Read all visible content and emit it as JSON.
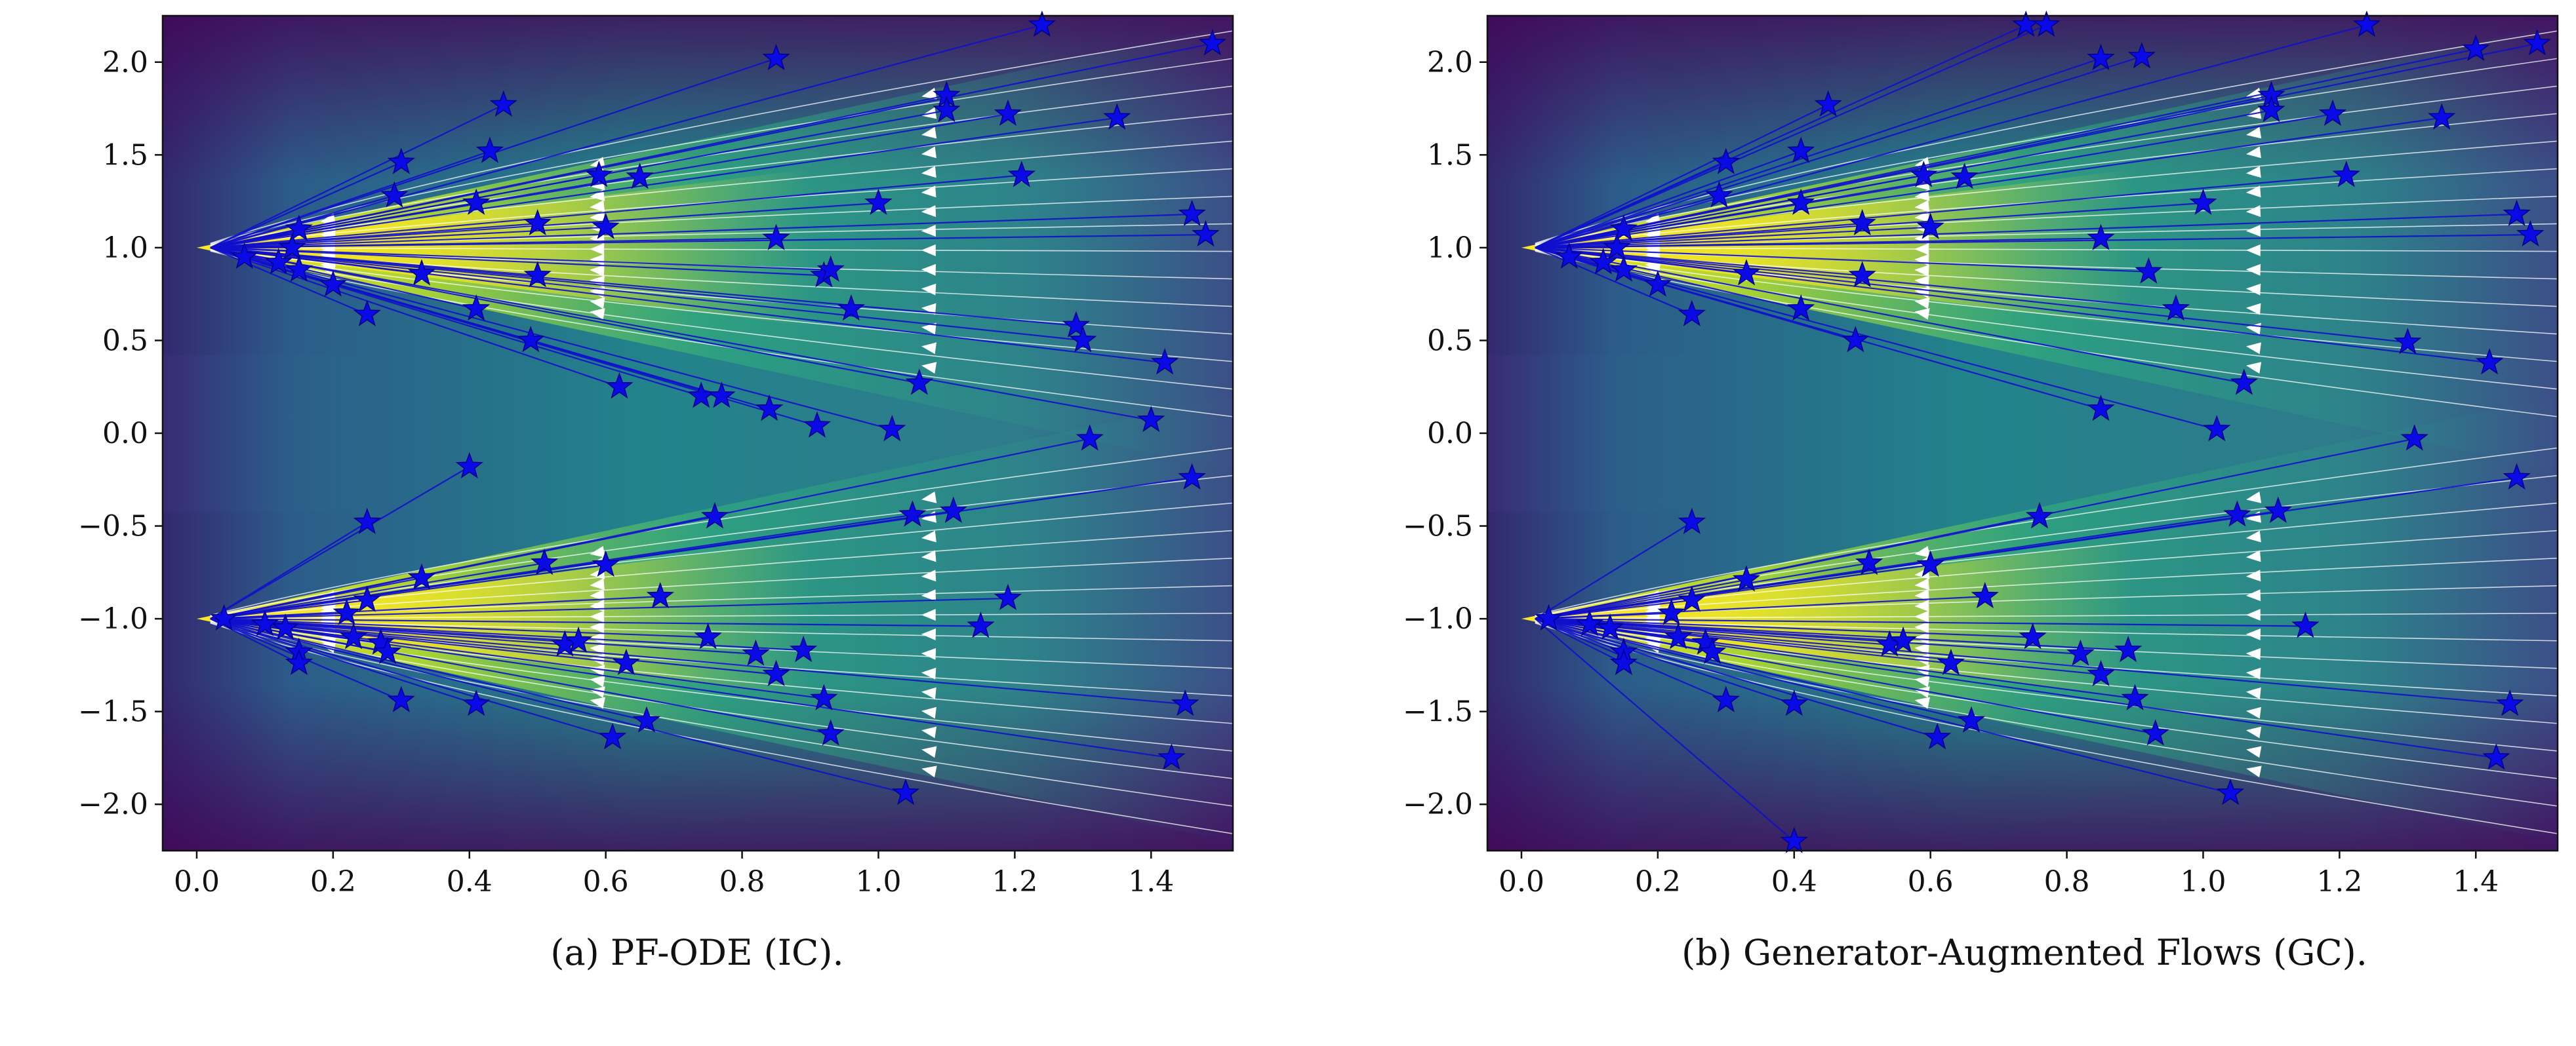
{
  "figure": {
    "captions": [
      "(a) PF-ODE (IC).",
      "(b) Generator-Augmented Flows (GC)."
    ]
  },
  "colors": {
    "trajectory": "#1010cc",
    "star": "#0a0ae6",
    "star_edge": "#00008a",
    "stream": "#ffffff",
    "axes": "#111111"
  },
  "chart_data": [
    {
      "type": "scatter",
      "title": "",
      "caption": "(a) PF-ODE (IC).",
      "xlabel": "",
      "ylabel": "",
      "xlim": [
        -0.05,
        1.52
      ],
      "ylim": [
        -2.25,
        2.25
      ],
      "xticks": [
        0.0,
        0.2,
        0.4,
        0.6,
        0.8,
        1.0,
        1.2,
        1.4
      ],
      "xtick_labels": [
        "0.0",
        "0.2",
        "0.4",
        "0.6",
        "0.8",
        "1.0",
        "1.2",
        "1.4"
      ],
      "yticks": [
        2.0,
        1.5,
        1.0,
        0.5,
        0.0,
        -0.5,
        -1.0,
        -1.5,
        -2.0
      ],
      "ytick_labels": [
        "2.0",
        "1.5",
        "1.0",
        "0.5",
        "0.0",
        "−0.5",
        "−1.0",
        "−1.5",
        "−2.0"
      ],
      "background": "density heatmap (viridis) with two modes at y=1 and y=-1",
      "modes": [
        1.0,
        -1.0
      ],
      "streamlines": "white flow arrows pointing toward the modes at x=0",
      "series": [
        {
          "name": "trajectory endpoints",
          "marker": "star",
          "points": [
            [
              0.85,
              2.02
            ],
            [
              1.24,
              2.2
            ],
            [
              1.49,
              2.1
            ],
            [
              0.45,
              1.77
            ],
            [
              1.1,
              1.82
            ],
            [
              1.1,
              1.74
            ],
            [
              1.19,
              1.72
            ],
            [
              1.35,
              1.7
            ],
            [
              0.3,
              1.46
            ],
            [
              0.43,
              1.52
            ],
            [
              0.59,
              1.39
            ],
            [
              0.65,
              1.38
            ],
            [
              1.21,
              1.39
            ],
            [
              0.29,
              1.28
            ],
            [
              0.41,
              1.24
            ],
            [
              1.0,
              1.24
            ],
            [
              1.46,
              1.18
            ],
            [
              0.5,
              1.13
            ],
            [
              0.6,
              1.11
            ],
            [
              0.85,
              1.05
            ],
            [
              1.48,
              1.07
            ],
            [
              0.15,
              1.1
            ],
            [
              0.14,
              1.0
            ],
            [
              0.15,
              0.88
            ],
            [
              0.33,
              0.86
            ],
            [
              0.5,
              0.85
            ],
            [
              0.92,
              0.85
            ],
            [
              0.93,
              0.88
            ],
            [
              0.07,
              0.95
            ],
            [
              0.12,
              0.92
            ],
            [
              0.2,
              0.8
            ],
            [
              0.25,
              0.64
            ],
            [
              0.41,
              0.67
            ],
            [
              0.49,
              0.5
            ],
            [
              0.96,
              0.67
            ],
            [
              1.29,
              0.58
            ],
            [
              1.3,
              0.5
            ],
            [
              1.42,
              0.38
            ],
            [
              0.62,
              0.25
            ],
            [
              0.74,
              0.2
            ],
            [
              0.77,
              0.2
            ],
            [
              0.84,
              0.13
            ],
            [
              0.91,
              0.04
            ],
            [
              1.02,
              0.02
            ],
            [
              1.06,
              0.27
            ],
            [
              1.31,
              -0.03
            ],
            [
              1.4,
              0.07
            ],
            [
              0.4,
              -0.18
            ],
            [
              0.25,
              -0.48
            ],
            [
              0.33,
              -0.78
            ],
            [
              0.51,
              -0.7
            ],
            [
              0.6,
              -0.71
            ],
            [
              0.76,
              -0.45
            ],
            [
              1.05,
              -0.44
            ],
            [
              1.11,
              -0.42
            ],
            [
              1.46,
              -0.24
            ],
            [
              0.68,
              -0.88
            ],
            [
              1.19,
              -0.89
            ],
            [
              1.15,
              -1.04
            ],
            [
              0.04,
              -1.0
            ],
            [
              0.1,
              -1.03
            ],
            [
              0.13,
              -1.05
            ],
            [
              0.15,
              -1.18
            ],
            [
              0.15,
              -1.24
            ],
            [
              0.22,
              -0.97
            ],
            [
              0.25,
              -0.9
            ],
            [
              0.23,
              -1.1
            ],
            [
              0.27,
              -1.13
            ],
            [
              0.28,
              -1.18
            ],
            [
              0.3,
              -1.44
            ],
            [
              0.41,
              -1.46
            ],
            [
              0.54,
              -1.14
            ],
            [
              0.56,
              -1.12
            ],
            [
              0.63,
              -1.24
            ],
            [
              0.61,
              -1.64
            ],
            [
              0.66,
              -1.55
            ],
            [
              0.75,
              -1.1
            ],
            [
              0.82,
              -1.19
            ],
            [
              0.85,
              -1.3
            ],
            [
              0.89,
              -1.17
            ],
            [
              0.92,
              -1.43
            ],
            [
              0.93,
              -1.62
            ],
            [
              1.04,
              -1.94
            ],
            [
              1.43,
              -1.75
            ],
            [
              1.45,
              -1.46
            ]
          ]
        }
      ]
    },
    {
      "type": "scatter",
      "title": "",
      "caption": "(b) Generator-Augmented Flows (GC).",
      "xlabel": "",
      "ylabel": "",
      "xlim": [
        -0.05,
        1.52
      ],
      "ylim": [
        -2.25,
        2.25
      ],
      "xticks": [
        0.0,
        0.2,
        0.4,
        0.6,
        0.8,
        1.0,
        1.2,
        1.4
      ],
      "xtick_labels": [
        "0.0",
        "0.2",
        "0.4",
        "0.6",
        "0.8",
        "1.0",
        "1.2",
        "1.4"
      ],
      "yticks": [
        2.0,
        1.5,
        1.0,
        0.5,
        0.0,
        -0.5,
        -1.0,
        -1.5,
        -2.0
      ],
      "ytick_labels": [
        "2.0",
        "1.5",
        "1.0",
        "0.5",
        "0.0",
        "−0.5",
        "−1.0",
        "−1.5",
        "−2.0"
      ],
      "background": "density heatmap (viridis) with two modes at y=1 and y=-1",
      "modes": [
        1.0,
        -1.0
      ],
      "streamlines": "white flow arrows pointing toward the modes at x=0",
      "series": [
        {
          "name": "trajectory endpoints",
          "marker": "star",
          "points": [
            [
              0.74,
              2.2
            ],
            [
              0.77,
              2.2
            ],
            [
              0.85,
              2.02
            ],
            [
              0.91,
              2.03
            ],
            [
              1.24,
              2.2
            ],
            [
              1.4,
              2.07
            ],
            [
              1.49,
              2.1
            ],
            [
              0.45,
              1.77
            ],
            [
              1.1,
              1.82
            ],
            [
              1.1,
              1.74
            ],
            [
              1.19,
              1.72
            ],
            [
              1.35,
              1.7
            ],
            [
              0.3,
              1.46
            ],
            [
              0.41,
              1.52
            ],
            [
              0.59,
              1.39
            ],
            [
              0.65,
              1.38
            ],
            [
              1.21,
              1.39
            ],
            [
              0.29,
              1.28
            ],
            [
              0.41,
              1.24
            ],
            [
              1.0,
              1.24
            ],
            [
              1.46,
              1.18
            ],
            [
              0.5,
              1.13
            ],
            [
              0.6,
              1.11
            ],
            [
              0.85,
              1.05
            ],
            [
              1.48,
              1.07
            ],
            [
              0.15,
              1.1
            ],
            [
              0.14,
              1.0
            ],
            [
              0.15,
              0.88
            ],
            [
              0.33,
              0.86
            ],
            [
              0.5,
              0.85
            ],
            [
              0.92,
              0.87
            ],
            [
              0.07,
              0.95
            ],
            [
              0.12,
              0.92
            ],
            [
              0.2,
              0.8
            ],
            [
              0.25,
              0.64
            ],
            [
              0.41,
              0.67
            ],
            [
              0.49,
              0.5
            ],
            [
              0.96,
              0.67
            ],
            [
              1.3,
              0.49
            ],
            [
              1.42,
              0.38
            ],
            [
              0.85,
              0.13
            ],
            [
              1.06,
              0.27
            ],
            [
              1.02,
              0.02
            ],
            [
              1.31,
              -0.03
            ],
            [
              0.25,
              -0.48
            ],
            [
              0.33,
              -0.79
            ],
            [
              0.51,
              -0.7
            ],
            [
              0.6,
              -0.71
            ],
            [
              0.76,
              -0.45
            ],
            [
              1.05,
              -0.44
            ],
            [
              1.11,
              -0.42
            ],
            [
              1.46,
              -0.24
            ],
            [
              0.68,
              -0.88
            ],
            [
              1.15,
              -1.04
            ],
            [
              0.04,
              -1.0
            ],
            [
              0.1,
              -1.03
            ],
            [
              0.13,
              -1.05
            ],
            [
              0.15,
              -1.18
            ],
            [
              0.15,
              -1.24
            ],
            [
              0.22,
              -0.97
            ],
            [
              0.25,
              -0.9
            ],
            [
              0.23,
              -1.1
            ],
            [
              0.27,
              -1.13
            ],
            [
              0.28,
              -1.18
            ],
            [
              0.3,
              -1.44
            ],
            [
              0.4,
              -1.46
            ],
            [
              0.54,
              -1.14
            ],
            [
              0.56,
              -1.12
            ],
            [
              0.63,
              -1.24
            ],
            [
              0.61,
              -1.64
            ],
            [
              0.66,
              -1.55
            ],
            [
              0.75,
              -1.1
            ],
            [
              0.82,
              -1.19
            ],
            [
              0.85,
              -1.3
            ],
            [
              0.89,
              -1.17
            ],
            [
              0.9,
              -1.43
            ],
            [
              0.93,
              -1.62
            ],
            [
              1.04,
              -1.94
            ],
            [
              1.43,
              -1.75
            ],
            [
              1.45,
              -1.46
            ],
            [
              0.4,
              -2.2
            ]
          ]
        }
      ]
    }
  ]
}
